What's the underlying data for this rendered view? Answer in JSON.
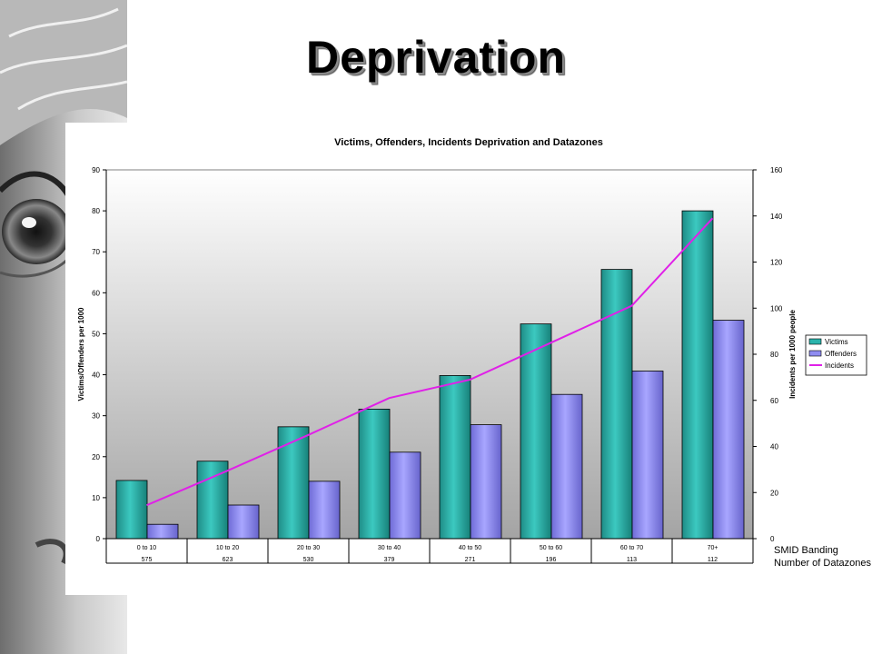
{
  "slide": {
    "title": "Deprivation"
  },
  "chart_data": {
    "type": "bar",
    "title": "Victims, Offenders, Incidents Deprivation and Datazones",
    "categories": [
      "0 to 10",
      "10 to 20",
      "20 to 30",
      "30 to 40",
      "40 to 50",
      "50 to 60",
      "60 to 70",
      "70+"
    ],
    "second_row_values": [
      "575",
      "623",
      "530",
      "379",
      "271",
      "196",
      "113",
      "112"
    ],
    "row_labels": [
      "SMID Banding",
      "Number of Datazones"
    ],
    "ylabel": "Victims/Offenders per 1000",
    "y2label": "Incidents per 1000 people",
    "ylim": [
      0,
      90
    ],
    "y2lim": [
      0,
      160
    ],
    "yticks": [
      0,
      10,
      20,
      30,
      40,
      50,
      60,
      70,
      80,
      90
    ],
    "y2ticks": [
      0,
      20,
      40,
      60,
      80,
      100,
      120,
      140,
      160
    ],
    "legend_position": "right",
    "series": [
      {
        "name": "Victims",
        "kind": "bar",
        "axis": "left",
        "color": "#2ab3ab",
        "values": [
          14.2,
          18.9,
          27.3,
          31.6,
          39.8,
          52.4,
          65.7,
          80.0
        ]
      },
      {
        "name": "Offenders",
        "kind": "bar",
        "axis": "left",
        "color": "#8f8cf0",
        "values": [
          3.5,
          8.2,
          14.0,
          21.1,
          27.8,
          35.2,
          40.9,
          53.3
        ]
      },
      {
        "name": "Incidents",
        "kind": "line",
        "axis": "right",
        "color": "#e020e8",
        "values": [
          14.5,
          29.5,
          45.0,
          61.0,
          69.0,
          85.0,
          101.0,
          139.0
        ]
      }
    ]
  }
}
